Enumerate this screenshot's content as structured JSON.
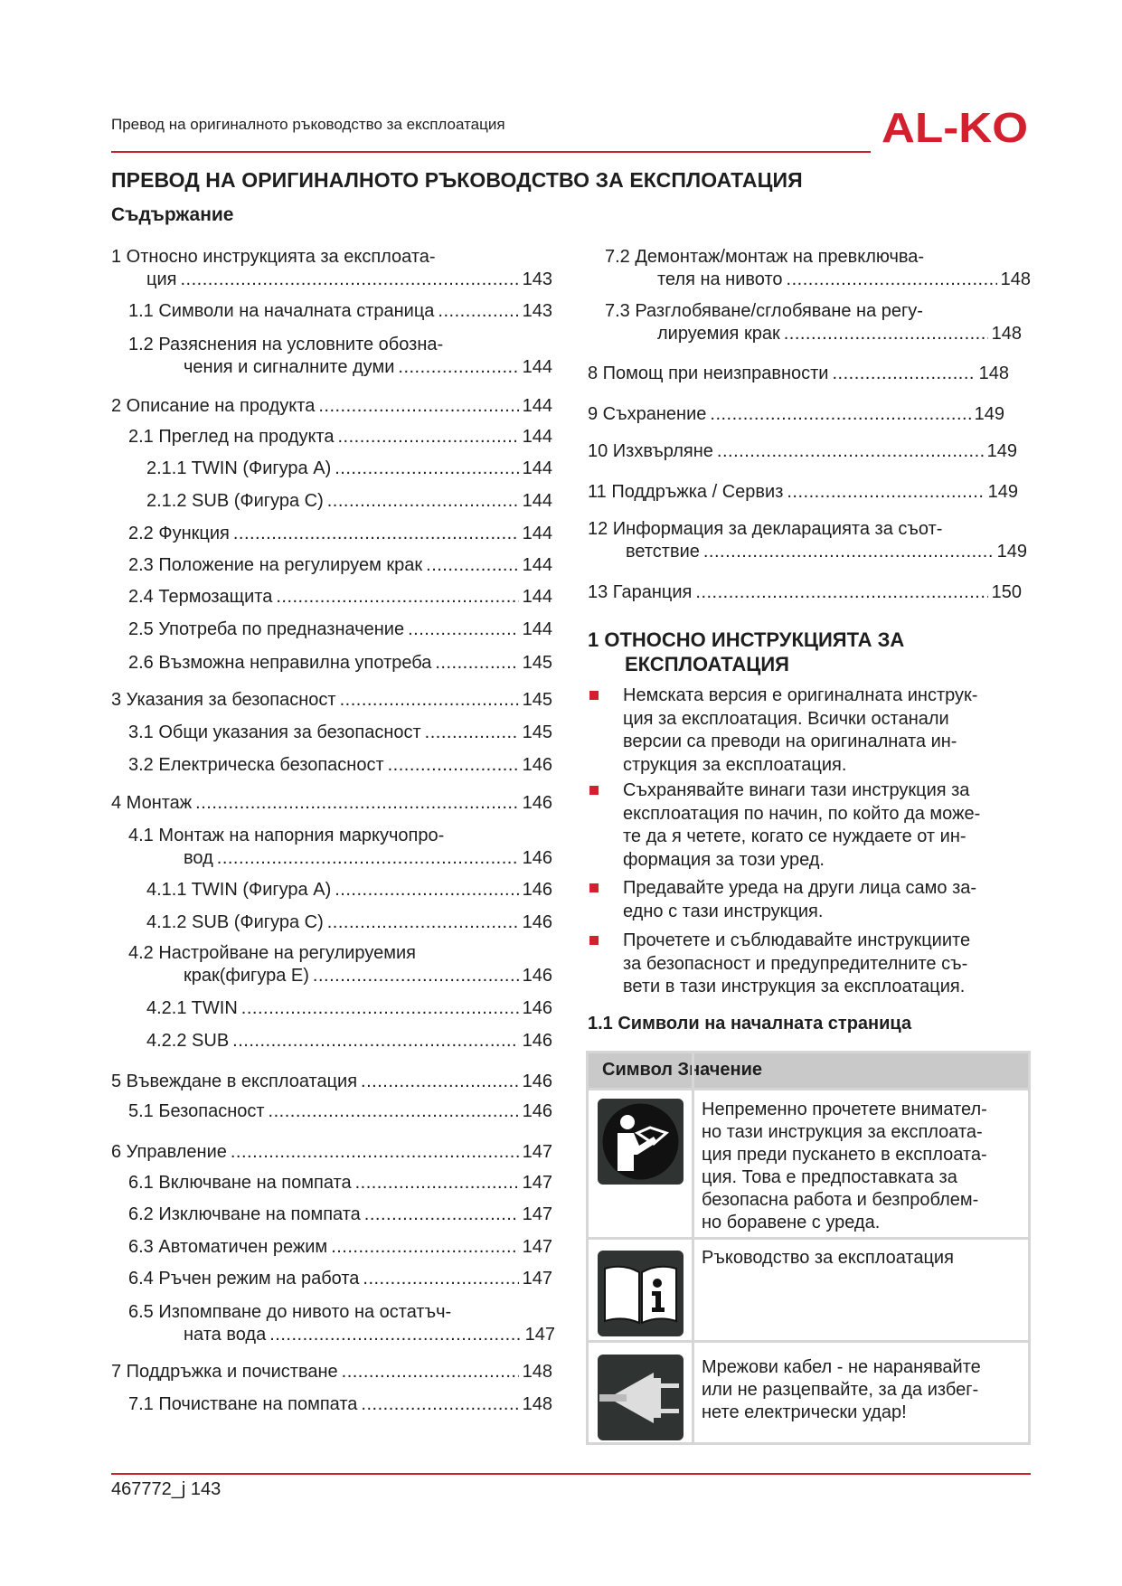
{
  "header": {
    "running_title": "Превод на оригиналното ръководство за експлоатация",
    "logo_text": "AL-KO",
    "brand_color": "#d3202e"
  },
  "title": "ПРЕВОД НА ОРИГИНАЛНОТО РЪКОВОДСТВО ЗА ЕКСПЛОАТАЦИЯ",
  "contents_heading": "Съдържание",
  "toc": [
    {
      "lines": [
        "1 Относно инструкцията за експлоата-",
        "ция"
      ],
      "page": "143"
    },
    {
      "lines": [
        "1.1 Символи на началната страница"
      ],
      "page": "143"
    },
    {
      "lines": [
        "1.2 Разяснения на условните обозна-",
        "чения и сигналните думи"
      ],
      "page": "144"
    },
    {
      "lines": [
        "2 Описание на продукта"
      ],
      "page": "144"
    },
    {
      "lines": [
        "2.1 Преглед на продукта"
      ],
      "page": "144"
    },
    {
      "lines": [
        "2.1.1 TWIN (Фигура A)"
      ],
      "page": "144"
    },
    {
      "lines": [
        "2.1.2 SUB (Фигура C)"
      ],
      "page": "144"
    },
    {
      "lines": [
        "2.2 Функция"
      ],
      "page": "144"
    },
    {
      "lines": [
        "2.3 Положение на регулируем крак"
      ],
      "page": "144"
    },
    {
      "lines": [
        "2.4 Термозащита"
      ],
      "page": "144"
    },
    {
      "lines": [
        "2.5 Употреба по предназначение"
      ],
      "page": "144"
    },
    {
      "lines": [
        "2.6 Възможна неправилна употреба"
      ],
      "page": "145"
    },
    {
      "lines": [
        "3 Указания за безопасност"
      ],
      "page": "145"
    },
    {
      "lines": [
        "3.1 Общи указания за безопасност"
      ],
      "page": "145"
    },
    {
      "lines": [
        "3.2 Електрическа безопасност"
      ],
      "page": "146"
    },
    {
      "lines": [
        "4 Монтаж"
      ],
      "page": "146"
    },
    {
      "lines": [
        "4.1 Монтаж на напорния маркучопро-",
        "вод"
      ],
      "page": "146"
    },
    {
      "lines": [
        "4.1.1 TWIN (Фигура A)"
      ],
      "page": "146"
    },
    {
      "lines": [
        "4.1.2 SUB (Фигура C)"
      ],
      "page": "146"
    },
    {
      "lines": [
        "4.2 Настройване на регулируемия",
        "крак(фигура E)"
      ],
      "page": "146"
    },
    {
      "lines": [
        "4.2.1 TWIN"
      ],
      "page": "146"
    },
    {
      "lines": [
        "4.2.2 SUB"
      ],
      "page": "146"
    },
    {
      "lines": [
        "5 Въвеждане в експлоатация"
      ],
      "page": "146"
    },
    {
      "lines": [
        "5.1 Безопасност"
      ],
      "page": "146"
    },
    {
      "lines": [
        "6 Управление"
      ],
      "page": "147"
    },
    {
      "lines": [
        "6.1 Включване на помпата"
      ],
      "page": "147"
    },
    {
      "lines": [
        "6.2 Изключване на помпата"
      ],
      "page": "147"
    },
    {
      "lines": [
        "6.3 Автоматичен режим"
      ],
      "page": "147"
    },
    {
      "lines": [
        "6.4 Ръчен режим на работа"
      ],
      "page": "147"
    },
    {
      "lines": [
        "6.5 Изпомпване до нивото на остатъч-",
        "ната вода"
      ],
      "page": "147"
    },
    {
      "lines": [
        "7 Поддръжка и почистване"
      ],
      "page": "148"
    },
    {
      "lines": [
        "7.1 Почистване на помпата"
      ],
      "page": "148"
    },
    {
      "lines": [
        "7.2 Демонтаж/монтаж на превключва-",
        "теля на нивото"
      ],
      "page": "148"
    },
    {
      "lines": [
        "7.3 Разглобяване/сглобяване на регу-",
        "лируемия крак"
      ],
      "page": "148"
    },
    {
      "lines": [
        "8 Помощ при неизправности"
      ],
      "page": "148"
    },
    {
      "lines": [
        "9 Съхранение"
      ],
      "page": "149"
    },
    {
      "lines": [
        "10 Изхвърляне"
      ],
      "page": "149"
    },
    {
      "lines": [
        "11 Поддръжка / Сервиз"
      ],
      "page": "149"
    },
    {
      "lines": [
        "12 Информация за декларацията за съот-",
        "ветствие"
      ],
      "page": "149"
    },
    {
      "lines": [
        "13 Гаранция"
      ],
      "page": "150"
    }
  ],
  "section1": {
    "heading_lines": [
      "1 ОТНОСНО ИНСТРУКЦИЯТА ЗА",
      "ЕКСПЛОАТАЦИЯ"
    ],
    "bullets": [
      [
        "Немската версия е оригиналната инструк-",
        "ция за експлоатация. Всички останали",
        "версии са преводи на оригиналната ин-",
        "струкция за експлоатация."
      ],
      [
        "Съхранявайте винаги тази инструкция за",
        "експлоатация по начин, по който да може-",
        "те да я четете, когато се нуждаете от ин-",
        "формация за този уред."
      ],
      [
        "Предавайте уреда на други лица само за-",
        "едно с тази инструкция."
      ],
      [
        "Прочетете и съблюдавайте инструкциите",
        "за безопасност и предупредителните съ-",
        "вети в тази инструкция за експлоатация."
      ]
    ],
    "subheading": "1.1 Символи на началната страница",
    "table": {
      "header": "Символ Значение",
      "rows": [
        {
          "icon": "read-manual-person-icon",
          "lines": [
            "Непременно прочетете внимател-",
            "но тази инструкция за експлоата-",
            "ция преди пускането в експлоата-",
            "ция. Това е предпоставката за",
            "безопасна работа и безпроблем-",
            "но боравене с уреда."
          ]
        },
        {
          "icon": "info-book-icon",
          "lines": [
            "Ръководство за експлоатация"
          ]
        },
        {
          "icon": "power-plug-icon",
          "lines": [
            "Мрежови кабел - не наранявайте",
            "или не разцепвайте, за да избег-",
            "нете електрически удар!"
          ]
        }
      ]
    }
  },
  "footer": {
    "text": "467772_j 143"
  }
}
